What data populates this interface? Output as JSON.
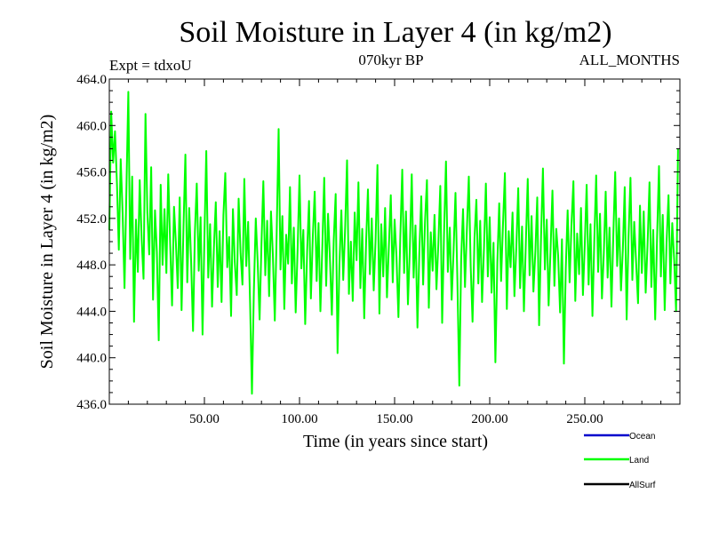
{
  "chart_data": {
    "type": "line",
    "title": "Soil Moisture in Layer 4 (in kg/m2)",
    "subtitle_left": "Expt = tdxoU",
    "subtitle_center": "070kyr BP",
    "subtitle_right": "ALL_MONTHS",
    "xlabel": "Time (in years since start)",
    "ylabel": "Soil Moisture in Layer 4 (in kg/m2)",
    "xlim": [
      0,
      300
    ],
    "ylim": [
      436,
      464
    ],
    "x_ticks": [
      50,
      100,
      150,
      200,
      250
    ],
    "x_tick_labels": [
      "50.00",
      "100.00",
      "150.00",
      "200.00",
      "250.00"
    ],
    "y_ticks": [
      436,
      440,
      444,
      448,
      452,
      456,
      460,
      464
    ],
    "y_tick_labels": [
      "436.0",
      "440.0",
      "444.0",
      "448.0",
      "452.0",
      "456.0",
      "460.0",
      "464.0"
    ],
    "grid": false,
    "legend_placement": "bottom-right, below plot",
    "series": [
      {
        "name": "Ocean",
        "color": "#0000cc",
        "values": []
      },
      {
        "name": "Land",
        "color": "#00ff00",
        "x_start": 0,
        "x_step": 1,
        "values": [
          451.0,
          461.2,
          456.8,
          459.5,
          455.0,
          449.3,
          457.1,
          452.4,
          446.0,
          454.8,
          462.9,
          448.5,
          455.6,
          443.1,
          451.9,
          447.4,
          455.3,
          450.2,
          446.8,
          461.0,
          452.5,
          448.9,
          456.4,
          445.0,
          452.7,
          449.1,
          441.5,
          454.9,
          448.0,
          452.8,
          447.3,
          455.8,
          449.7,
          444.5,
          453.0,
          449.9,
          446.0,
          453.8,
          444.1,
          451.4,
          457.5,
          446.5,
          452.9,
          448.4,
          442.3,
          450.8,
          455.0,
          447.5,
          452.1,
          442.0,
          450.3,
          457.8,
          446.9,
          451.5,
          444.4,
          449.5,
          453.4,
          446.1,
          450.9,
          444.8,
          452.3,
          455.9,
          447.8,
          450.4,
          443.6,
          452.8,
          448.2,
          445.4,
          453.7,
          449.0,
          446.3,
          455.4,
          447.9,
          451.7,
          444.7,
          436.9,
          445.6,
          452.0,
          448.3,
          443.3,
          449.8,
          455.2,
          447.1,
          451.8,
          445.3,
          452.6,
          448.9,
          443.2,
          450.7,
          459.7,
          447.6,
          452.2,
          444.2,
          450.6,
          448.1,
          454.7,
          446.4,
          451.2,
          443.9,
          449.4,
          455.7,
          447.7,
          451.0,
          442.9,
          449.2,
          453.5,
          445.1,
          450.5,
          454.3,
          446.6,
          451.6,
          444.0,
          449.6,
          455.5,
          446.2,
          452.4,
          448.6,
          443.7,
          450.1,
          454.1,
          440.4,
          448.0,
          452.7,
          446.7,
          451.3,
          457.0,
          445.5,
          450.0,
          444.9,
          452.5,
          448.4,
          455.1,
          446.0,
          451.1,
          443.4,
          449.9,
          454.5,
          447.2,
          452.0,
          445.8,
          450.2,
          456.6,
          443.8,
          451.5,
          447.0,
          452.9,
          445.2,
          449.7,
          454.0,
          446.5,
          451.9,
          448.7,
          443.5,
          450.4,
          456.2,
          447.3,
          452.6,
          444.6,
          449.3,
          455.8,
          446.9,
          451.4,
          442.6,
          449.0,
          453.9,
          446.3,
          451.7,
          455.3,
          444.3,
          450.8,
          447.5,
          452.3,
          445.9,
          449.8,
          454.8,
          443.0,
          450.6,
          456.9,
          447.4,
          451.2,
          445.0,
          449.1,
          454.2,
          446.8,
          437.6,
          448.5,
          452.8,
          446.1,
          451.0,
          455.6,
          447.9,
          443.1,
          450.3,
          453.6,
          446.4,
          451.8,
          444.8,
          449.5,
          455.0,
          447.0,
          452.1,
          445.6,
          449.9,
          439.6,
          448.2,
          453.3,
          446.6,
          451.6,
          455.9,
          444.2,
          450.9,
          447.8,
          452.5,
          445.3,
          449.6,
          454.6,
          446.0,
          451.3,
          444.0,
          450.0,
          455.4,
          447.1,
          452.2,
          445.7,
          449.2,
          453.8,
          442.8,
          450.5,
          456.3,
          447.6,
          451.9,
          444.5,
          449.4,
          454.4,
          446.2,
          451.1,
          448.8,
          443.9,
          450.2,
          439.5,
          447.7,
          452.7,
          446.5,
          451.4,
          455.2,
          444.9,
          450.7,
          447.2,
          452.9,
          445.4,
          449.8,
          454.9,
          446.3,
          451.5,
          443.6,
          450.1,
          455.7,
          447.4,
          452.4,
          445.1,
          449.0,
          454.3,
          446.9,
          451.2,
          444.4,
          450.6,
          456.0,
          447.9,
          452.0,
          445.8,
          449.3,
          454.7,
          443.3,
          450.4,
          455.5,
          446.7,
          451.7,
          448.1,
          444.7,
          453.1,
          447.3,
          452.6,
          445.6,
          449.7,
          455.1,
          446.1,
          451.0,
          443.3,
          450.3,
          456.5,
          447.0,
          452.3,
          444.1,
          449.9,
          454.0,
          446.4,
          451.6,
          448.4,
          444.0,
          458.0
        ]
      },
      {
        "name": "AllSurf",
        "color": "#000000",
        "values": []
      }
    ]
  }
}
